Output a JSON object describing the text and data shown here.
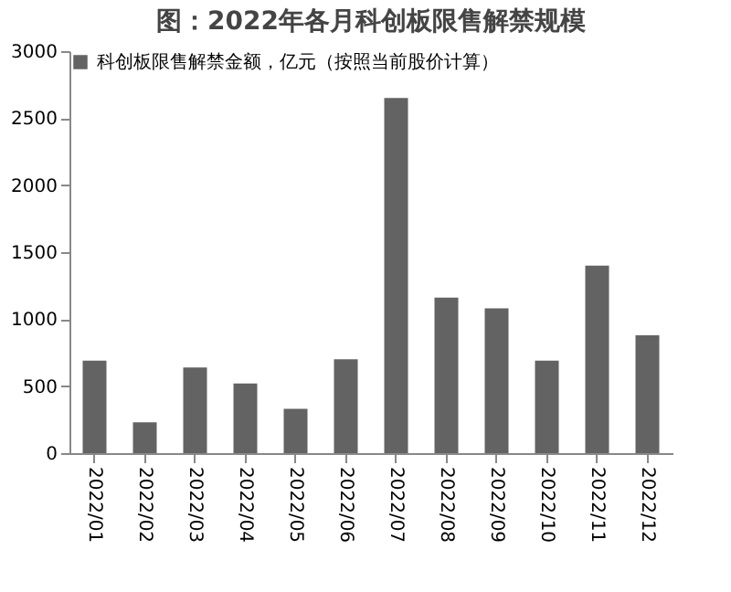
{
  "chart_data": {
    "type": "bar",
    "title": "图：2022年各月科创板限售解禁规模",
    "categories": [
      "2022/01",
      "2022/02",
      "2022/03",
      "2022/04",
      "2022/05",
      "2022/06",
      "2022/07",
      "2022/08",
      "2022/09",
      "2022/10",
      "2022/11",
      "2022/12"
    ],
    "series": [
      {
        "name": "科创板限售解禁金额，亿元（按照当前股价计算）",
        "color": "#636363",
        "values": [
          690,
          230,
          640,
          520,
          330,
          700,
          2650,
          1160,
          1080,
          690,
          1400,
          880
        ]
      }
    ],
    "ylim": [
      0,
      3000
    ],
    "yticks": [
      0,
      500,
      1000,
      1500,
      2000,
      2500,
      3000
    ],
    "grid": false,
    "legend": "top left"
  }
}
